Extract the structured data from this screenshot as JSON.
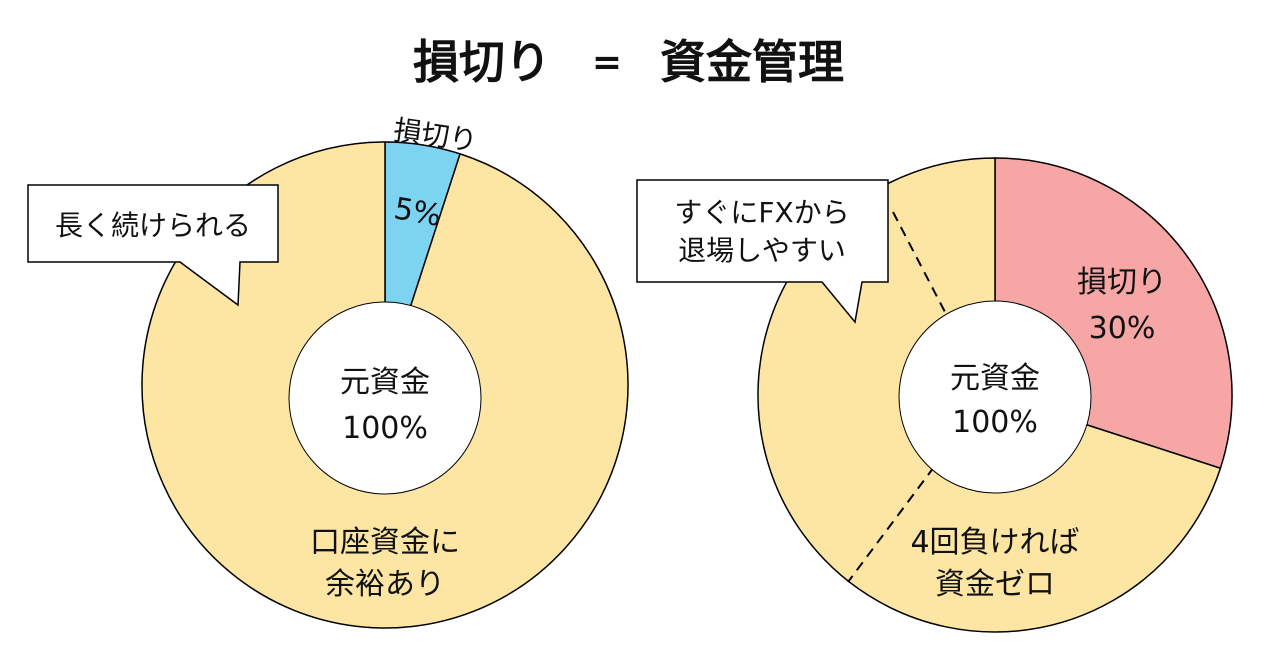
{
  "title": {
    "left": "損切り",
    "sep": "=",
    "right": "資金管理"
  },
  "colors": {
    "remaining": "#FDE6A4",
    "small_loss": "#7DD4F1",
    "big_loss": "#F7A6A6",
    "stroke": "#000000",
    "center": "#ffffff"
  },
  "chart_data": [
    {
      "type": "pie",
      "title": "",
      "slices": [
        {
          "label": "損切り",
          "value": 5,
          "value_label": "5%"
        },
        {
          "label": "口座資金に余裕あり",
          "value": 95
        }
      ],
      "center_label": {
        "line1": "元資金",
        "line2": "100%"
      },
      "remaining_label": {
        "line1": "口座資金に",
        "line2": "余裕あり"
      },
      "callout": {
        "line1": "長く続けられる"
      },
      "loss_label_outside": "損切り"
    },
    {
      "type": "pie",
      "title": "",
      "slices": [
        {
          "label": "損切り",
          "value": 30,
          "value_label": "30%"
        },
        {
          "label": "4回負ければ資金ゼロ",
          "value": 70
        }
      ],
      "center_label": {
        "line1": "元資金",
        "line2": "100%"
      },
      "loss_label": {
        "line1": "損切り",
        "line2": "30%"
      },
      "remaining_label": {
        "line1": "4回負ければ",
        "line2": "資金ゼロ"
      },
      "callout": {
        "line1": "すぐにFXから",
        "line2": "退場しやすい"
      }
    }
  ]
}
